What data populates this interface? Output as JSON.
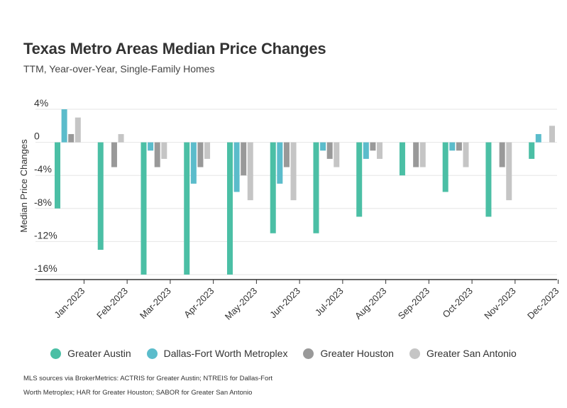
{
  "chart_data": {
    "type": "bar",
    "title": "Texas Metro Areas Median Price Changes",
    "subtitle": "TTM, Year-over-Year, Single-Family Homes",
    "xlabel": "",
    "ylabel": "Median Price Changes",
    "ylim": [
      -16,
      4
    ],
    "yticks": [
      {
        "value": 4,
        "label": "4%"
      },
      {
        "value": 0,
        "label": "0"
      },
      {
        "value": -4,
        "label": "-4%"
      },
      {
        "value": -8,
        "label": "-8%"
      },
      {
        "value": -12,
        "label": "-12%"
      },
      {
        "value": -16,
        "label": "-16%"
      }
    ],
    "grid": true,
    "legend_position": "bottom",
    "categories": [
      "Jan-2023",
      "Feb-2023",
      "Mar-2023",
      "Apr-2023",
      "May-2023",
      "Jun-2023",
      "Jul-2023",
      "Aug-2023",
      "Sep-2023",
      "Oct-2023",
      "Nov-2023",
      "Dec-2023"
    ],
    "series": [
      {
        "name": "Greater Austin",
        "color": "#4bbfa5",
        "values": [
          -8,
          -13,
          -16,
          -16,
          -16,
          -11,
          -11,
          -9,
          -4,
          -6,
          -9,
          -2
        ]
      },
      {
        "name": "Dallas-Fort Worth Metroplex",
        "color": "#5bbccb",
        "values": [
          4,
          0,
          -1,
          -5,
          -6,
          -5,
          -1,
          -2,
          0,
          -1,
          0,
          1
        ]
      },
      {
        "name": "Greater Houston",
        "color": "#999999",
        "values": [
          1,
          -3,
          -3,
          -3,
          -4,
          -3,
          -2,
          -1,
          -3,
          -1,
          -3,
          0
        ]
      },
      {
        "name": "Greater San Antonio",
        "color": "#c5c5c5",
        "values": [
          3,
          1,
          -2,
          -2,
          -7,
          -7,
          -3,
          -2,
          -3,
          -3,
          -7,
          2
        ]
      }
    ]
  },
  "footnote_lines": [
    "MLS sources via BrokerMetrics: ACTRIS for Greater Austin; NTREIS for Dallas-Fort",
    "Worth Metroplex; HAR for Greater Houston; SABOR for Greater San Antonio"
  ]
}
